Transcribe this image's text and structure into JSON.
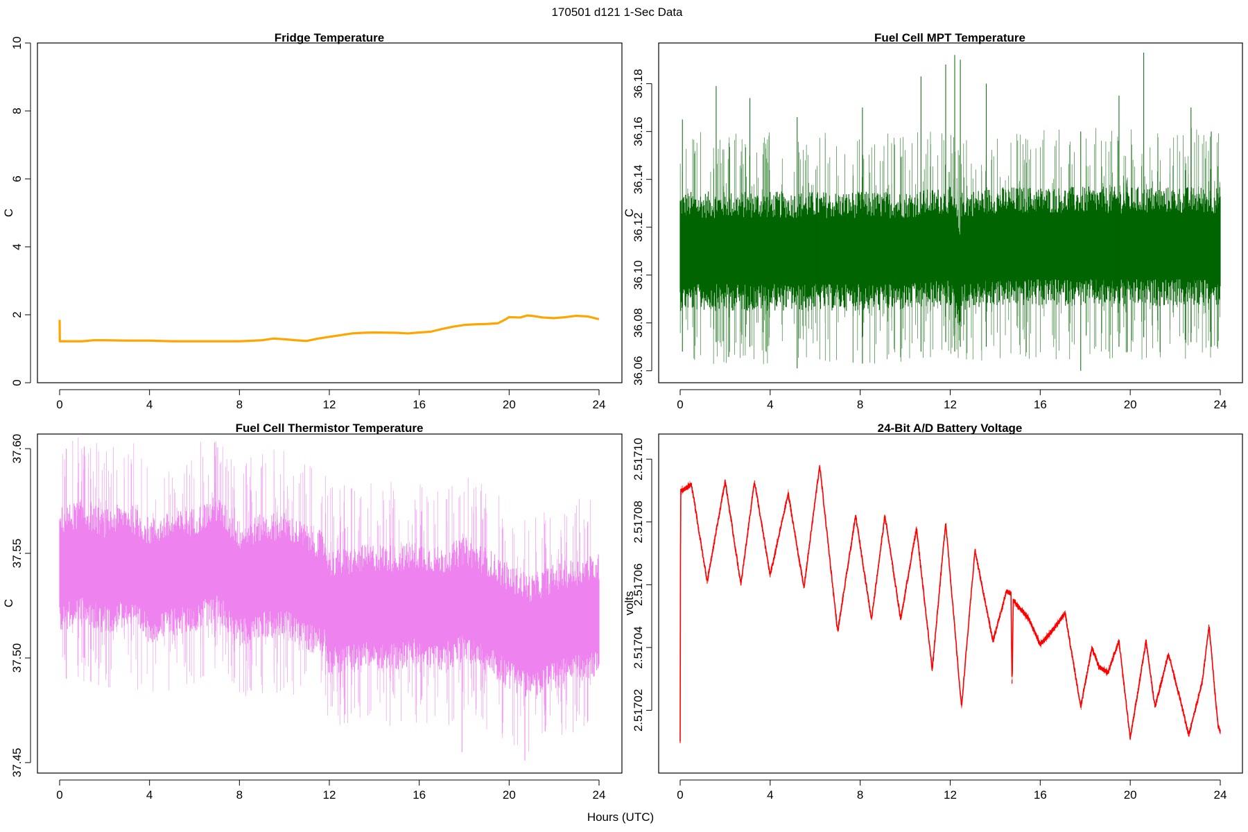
{
  "figure": {
    "suptitle": "170501   d121   1-Sec Data",
    "xlabel": "Hours (UTC)"
  },
  "chart_data": [
    {
      "type": "line",
      "title": "Fridge Temperature",
      "ylabel": "C",
      "xlim": [
        0,
        24
      ],
      "ylim": [
        0,
        10
      ],
      "xticks": [
        0,
        4,
        8,
        12,
        16,
        20,
        24
      ],
      "xtick_labels": [
        "0",
        "4",
        "8",
        "12",
        "16",
        "20",
        "24"
      ],
      "yticks": [
        0,
        2,
        4,
        6,
        8,
        10
      ],
      "ytick_labels": [
        "0",
        "2",
        "4",
        "6",
        "8",
        "10"
      ],
      "color": "#FFA500",
      "band": 0,
      "x": [
        0,
        0.01,
        0.05,
        1,
        1.5,
        2,
        3,
        4,
        5,
        6,
        7,
        8,
        9,
        9.5,
        10,
        10.5,
        11,
        11.5,
        12,
        12.5,
        13,
        13.5,
        14,
        15,
        15.5,
        16,
        16.5,
        17,
        17.5,
        18,
        18.5,
        19,
        19.5,
        19.8,
        20,
        20.5,
        20.8,
        21,
        21.5,
        22,
        22.5,
        23,
        23.5,
        24
      ],
      "y": [
        1.85,
        1.22,
        1.22,
        1.22,
        1.25,
        1.25,
        1.24,
        1.24,
        1.22,
        1.22,
        1.22,
        1.22,
        1.25,
        1.3,
        1.28,
        1.25,
        1.23,
        1.3,
        1.35,
        1.4,
        1.45,
        1.47,
        1.48,
        1.47,
        1.45,
        1.48,
        1.5,
        1.58,
        1.65,
        1.7,
        1.72,
        1.73,
        1.75,
        1.85,
        1.93,
        1.92,
        1.98,
        1.97,
        1.92,
        1.9,
        1.93,
        1.97,
        1.95,
        1.87
      ],
      "spikes": []
    },
    {
      "type": "line",
      "title": "Fuel Cell MPT Temperature",
      "ylabel": "C",
      "xlim": [
        0,
        24
      ],
      "ylim": [
        36.055,
        36.197
      ],
      "xticks": [
        0,
        4,
        8,
        12,
        16,
        20,
        24
      ],
      "xtick_labels": [
        "0",
        "4",
        "8",
        "12",
        "16",
        "20",
        "24"
      ],
      "yticks": [
        36.06,
        36.08,
        36.1,
        36.12,
        36.14,
        36.16,
        36.18
      ],
      "ytick_labels": [
        "36.06",
        "36.08",
        "36.10",
        "36.12",
        "36.14",
        "36.16",
        "36.18"
      ],
      "color": "#006400",
      "band": 0.025,
      "x": [
        0,
        2,
        4,
        6,
        8,
        10,
        12,
        12.3,
        12.4,
        12.5,
        14,
        16,
        18,
        20,
        22,
        24
      ],
      "y": [
        36.11,
        36.11,
        36.11,
        36.11,
        36.11,
        36.11,
        36.112,
        36.105,
        36.1,
        36.11,
        36.112,
        36.112,
        36.112,
        36.112,
        36.112,
        36.112
      ],
      "spikes": [
        {
          "x": 0.1,
          "lo": 36.068,
          "hi": 36.165
        },
        {
          "x": 1.6,
          "lo": 36.072,
          "hi": 36.179
        },
        {
          "x": 3.1,
          "lo": 36.07,
          "hi": 36.174
        },
        {
          "x": 5.2,
          "lo": 36.061,
          "hi": 36.166
        },
        {
          "x": 8.1,
          "lo": 36.063,
          "hi": 36.17
        },
        {
          "x": 10.7,
          "lo": 36.068,
          "hi": 36.183
        },
        {
          "x": 11.8,
          "lo": 36.072,
          "hi": 36.188
        },
        {
          "x": 12.2,
          "lo": 36.068,
          "hi": 36.192
        },
        {
          "x": 12.45,
          "lo": 36.07,
          "hi": 36.19
        },
        {
          "x": 13.6,
          "lo": 36.07,
          "hi": 36.18
        },
        {
          "x": 17.8,
          "lo": 36.06,
          "hi": 36.16
        },
        {
          "x": 19.5,
          "lo": 36.07,
          "hi": 36.175
        },
        {
          "x": 20.6,
          "lo": 36.074,
          "hi": 36.193
        },
        {
          "x": 22.7,
          "lo": 36.072,
          "hi": 36.17
        },
        {
          "x": 23.6,
          "lo": 36.07,
          "hi": 36.16
        }
      ]
    },
    {
      "type": "line",
      "title": "Fuel Cell Thermistor Temperature",
      "ylabel": "C",
      "xlim": [
        0,
        24
      ],
      "ylim": [
        37.445,
        37.607
      ],
      "xticks": [
        0,
        4,
        8,
        12,
        16,
        20,
        24
      ],
      "xtick_labels": [
        "0",
        "4",
        "8",
        "12",
        "16",
        "20",
        "24"
      ],
      "yticks": [
        37.45,
        37.5,
        37.55,
        37.6
      ],
      "ytick_labels": [
        "37.45",
        "37.50",
        "37.55",
        "37.60"
      ],
      "color": "#EE82EE",
      "band": 0.03,
      "x": [
        0,
        1,
        2,
        3,
        4,
        5,
        6,
        7,
        8,
        9,
        10,
        11,
        11.8,
        12,
        13,
        14,
        15,
        16,
        17,
        18,
        19,
        20,
        21,
        22,
        23,
        24
      ],
      "y": [
        37.542,
        37.546,
        37.541,
        37.545,
        37.537,
        37.54,
        37.542,
        37.548,
        37.535,
        37.539,
        37.54,
        37.534,
        37.53,
        37.522,
        37.523,
        37.525,
        37.524,
        37.526,
        37.523,
        37.528,
        37.523,
        37.515,
        37.51,
        37.515,
        37.518,
        37.52
      ],
      "spikes": [
        {
          "x": 0.3,
          "lo": 37.49,
          "hi": 37.6
        },
        {
          "x": 1.1,
          "lo": 37.5,
          "hi": 37.601
        },
        {
          "x": 6.9,
          "lo": 37.51,
          "hi": 37.603
        },
        {
          "x": 12.7,
          "lo": 37.473,
          "hi": 37.562
        },
        {
          "x": 16.1,
          "lo": 37.48,
          "hi": 37.57
        },
        {
          "x": 17.9,
          "lo": 37.455,
          "hi": 37.555
        },
        {
          "x": 20.7,
          "lo": 37.451,
          "hi": 37.54
        },
        {
          "x": 21.6,
          "lo": 37.465,
          "hi": 37.545
        },
        {
          "x": 23.5,
          "lo": 37.47,
          "hi": 37.565
        }
      ]
    },
    {
      "type": "line",
      "title": "24-Bit A/D Battery Voltage",
      "ylabel": "volts",
      "xlim": [
        0,
        24
      ],
      "ylim": [
        2.517,
        2.517108
      ],
      "xticks": [
        0,
        4,
        8,
        12,
        16,
        20,
        24
      ],
      "xtick_labels": [
        "0",
        "4",
        "8",
        "12",
        "16",
        "20",
        "24"
      ],
      "yticks": [
        2.51702,
        2.51704,
        2.51706,
        2.51708,
        2.5171
      ],
      "ytick_labels": [
        "2.51702",
        "2.51704",
        "2.51706",
        "2.51708",
        "2.51710"
      ],
      "color": "#FF0000",
      "band": 8e-07,
      "x": [
        0,
        0.02,
        0.1,
        0.5,
        1.2,
        2.0,
        2.7,
        3.3,
        4.0,
        4.8,
        5.5,
        6.2,
        7.0,
        7.8,
        8.5,
        9.1,
        9.8,
        10.5,
        11.2,
        11.8,
        12.5,
        13.1,
        13.9,
        14.5,
        14.7,
        14.75,
        14.8,
        15.5,
        16.0,
        16.5,
        17.1,
        17.8,
        18.3,
        18.6,
        19.0,
        19.5,
        20.0,
        20.7,
        21.1,
        21.7,
        22.2,
        22.6,
        23.2,
        23.5,
        23.9,
        24.0
      ],
      "y": [
        2.51701,
        2.51709,
        2.51709,
        2.517092,
        2.517061,
        2.517093,
        2.51706,
        2.517093,
        2.517063,
        2.517089,
        2.517059,
        2.517098,
        2.517045,
        2.517082,
        2.517049,
        2.517082,
        2.517049,
        2.517078,
        2.517033,
        2.51708,
        2.517021,
        2.517071,
        2.517042,
        2.517058,
        2.517057,
        2.517027,
        2.517055,
        2.517049,
        2.517041,
        2.517045,
        2.517051,
        2.517021,
        2.51704,
        2.517034,
        2.517032,
        2.517042,
        2.517011,
        2.517042,
        2.517021,
        2.517038,
        2.517024,
        2.517012,
        2.517029,
        2.517047,
        2.517015,
        2.517013
      ],
      "spikes": []
    }
  ]
}
